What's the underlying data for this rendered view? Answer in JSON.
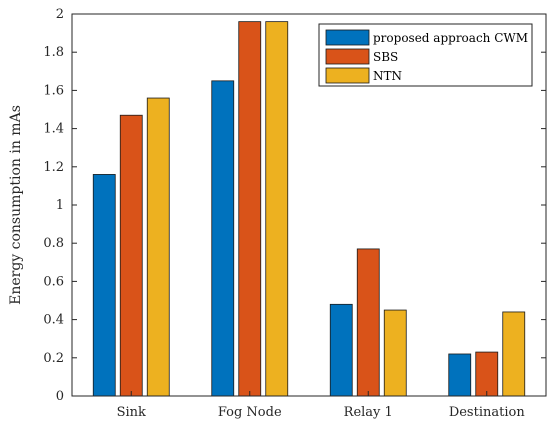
{
  "chart_data": {
    "type": "bar",
    "title": "",
    "xlabel": "",
    "ylabel": "Energy consumption in mAs",
    "ylim": [
      0,
      2
    ],
    "yticks": [
      "0",
      "0.2",
      "0.4",
      "0.6",
      "0.8",
      "1",
      "1.2",
      "1.4",
      "1.6",
      "1.8",
      "2"
    ],
    "categories": [
      "Sink",
      "Fog Node",
      "Relay 1",
      "Destination"
    ],
    "series": [
      {
        "name": "proposed approach CWM",
        "color": "#0072BD",
        "values": [
          1.16,
          1.65,
          0.48,
          0.22
        ]
      },
      {
        "name": "SBS",
        "color": "#D95319",
        "values": [
          1.47,
          1.96,
          0.77,
          0.23
        ]
      },
      {
        "name": "NTN",
        "color": "#EDB120",
        "values": [
          1.56,
          1.96,
          0.45,
          0.44
        ]
      }
    ],
    "legend_position": "top-right",
    "grid": false
  }
}
